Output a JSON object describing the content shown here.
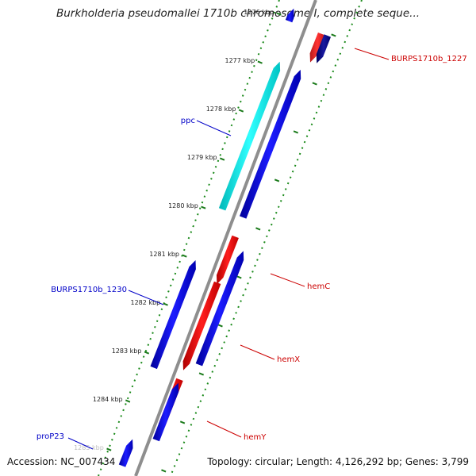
{
  "title": "Burkholderia pseudomallei 1710b chromosome I, complete seque...",
  "footer": {
    "accession": "Accession: NC_007434",
    "summary": "Topology: circular; Length: 4,126,292 bp; Genes: 3,799"
  },
  "colors": {
    "forward_gene": "#0000e6",
    "reverse_gene": "#ee0000",
    "highlight_gene": "#00e5e5",
    "forward_label": "#0000c8",
    "reverse_label": "#cc0000",
    "tick": "#1a7a1a",
    "backbone": "#8a8a8a"
  },
  "ticks": [
    {
      "label": "1276 kbp",
      "kbp": 1276
    },
    {
      "label": "1277 kbp",
      "kbp": 1277
    },
    {
      "label": "1278 kbp",
      "kbp": 1278
    },
    {
      "label": "1279 kbp",
      "kbp": 1279
    },
    {
      "label": "1280 kbp",
      "kbp": 1280
    },
    {
      "label": "1281 kbp",
      "kbp": 1281
    },
    {
      "label": "1282 kbp",
      "kbp": 1282
    },
    {
      "label": "1283 kbp",
      "kbp": 1283
    },
    {
      "label": "1284 kbp",
      "kbp": 1284
    },
    {
      "label": "1285 kbp",
      "kbp": 1285
    }
  ],
  "genes": [
    {
      "name": "",
      "strand": "+",
      "start_kbp": 1275.8,
      "end_kbp": 1276.06,
      "color": "blue"
    },
    {
      "name": "",
      "strand": "-",
      "start_kbp": 1276.06,
      "end_kbp": 1276.65,
      "color": "red"
    },
    {
      "name": "BURPS1710b_1227",
      "strand": "-",
      "start_kbp": 1276.05,
      "end_kbp": 1276.62,
      "color": "navy"
    },
    {
      "name": "ppc",
      "strand": "+",
      "start_kbp": 1276.85,
      "end_kbp": 1279.9,
      "color": "cyan"
    },
    {
      "name": "",
      "strand": "+",
      "start_kbp": 1276.85,
      "end_kbp": 1279.9,
      "color": "blue"
    },
    {
      "name": "hemC",
      "strand": "-",
      "start_kbp": 1280.3,
      "end_kbp": 1281.28,
      "color": "red"
    },
    {
      "name": "",
      "strand": "+",
      "start_kbp": 1280.5,
      "end_kbp": 1282.85,
      "color": "blue"
    },
    {
      "name": "hemX",
      "strand": "-",
      "start_kbp": 1281.25,
      "end_kbp": 1283.06,
      "color": "red"
    },
    {
      "name": "BURPS1710b_1230",
      "strand": "+",
      "start_kbp": 1281.0,
      "end_kbp": 1283.22,
      "color": "blue"
    },
    {
      "name": "hemY",
      "strand": "-",
      "start_kbp": 1283.25,
      "end_kbp": 1284.35,
      "color": "red"
    },
    {
      "name": "",
      "strand": "+",
      "start_kbp": 1283.32,
      "end_kbp": 1284.5,
      "color": "blue"
    },
    {
      "name": "proP23",
      "strand": "+",
      "start_kbp": 1284.65,
      "end_kbp": 1285.2,
      "color": "blue"
    }
  ],
  "gene_labels": [
    {
      "text": "BURPS1710b_1227",
      "side": "right",
      "color": "red"
    },
    {
      "text": "ppc",
      "side": "left",
      "color": "blue"
    },
    {
      "text": "BURPS1710b_1230",
      "side": "left",
      "color": "blue"
    },
    {
      "text": "hemC",
      "side": "right",
      "color": "red"
    },
    {
      "text": "hemX",
      "side": "right",
      "color": "red"
    },
    {
      "text": "hemY",
      "side": "right",
      "color": "red"
    },
    {
      "text": "proP23",
      "side": "left",
      "color": "blue"
    }
  ]
}
